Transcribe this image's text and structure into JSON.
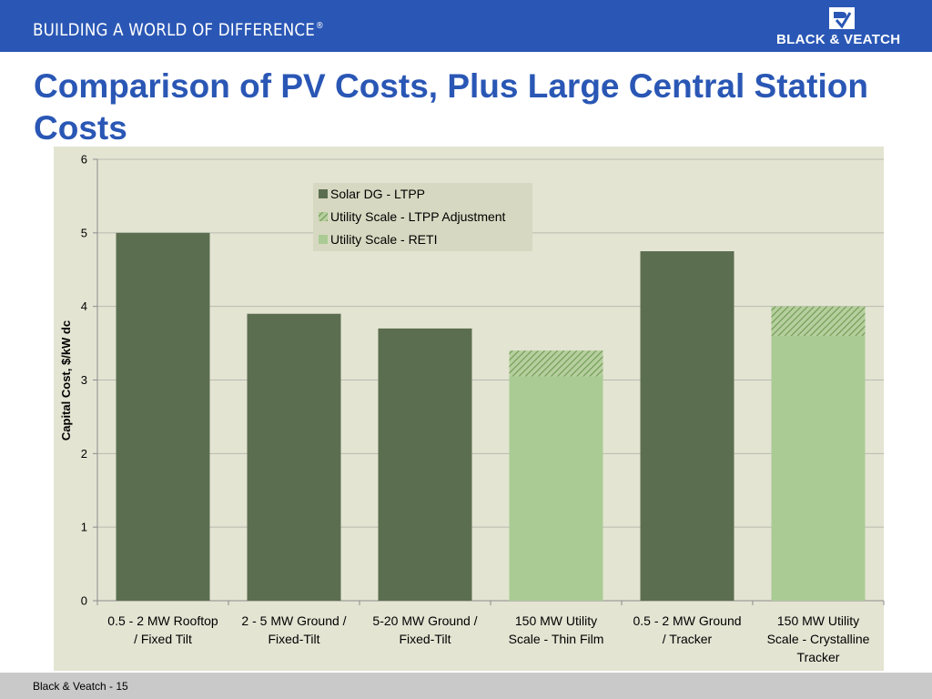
{
  "header": {
    "tagline": "BUILDING A WORLD OF DIFFERENCE",
    "tagline_mark": "®",
    "logo_text": "BLACK & VEATCH"
  },
  "slide": {
    "title": "Comparison of PV Costs, Plus Large Central Station Costs"
  },
  "footer": {
    "text": "Black & Veatch - 15"
  },
  "colors": {
    "brand_blue": "#2a57b5",
    "plot_background": "#e3e4d2",
    "solar_dg": "#5c6e50",
    "utility_adjustment": "#8faf6e",
    "utility_reti": "#aacc94"
  },
  "chart_data": {
    "type": "bar",
    "stacked": true,
    "title": "",
    "xlabel": "",
    "ylabel": "Capital Cost, $/kW dc",
    "ylim": [
      0,
      6
    ],
    "yticks": [
      "0",
      "1",
      "2",
      "3",
      "4",
      "5",
      "6"
    ],
    "grid": true,
    "legend_position": "top-center",
    "categories": [
      [
        "0.5 - 2 MW Rooftop",
        "/ Fixed Tilt"
      ],
      [
        "2 - 5 MW Ground /",
        "Fixed-Tilt"
      ],
      [
        "5-20 MW Ground /",
        "Fixed-Tilt"
      ],
      [
        "150 MW Utility",
        "Scale - Thin Film"
      ],
      [
        "0.5 - 2 MW Ground",
        "/ Tracker"
      ],
      [
        "150 MW Utility",
        "Scale - Crystalline",
        "Tracker"
      ]
    ],
    "series": [
      {
        "name": "Solar DG - LTPP",
        "values": [
          5.0,
          3.9,
          3.7,
          0,
          4.75,
          0
        ],
        "color": "#5c6e50",
        "pattern": "solid"
      },
      {
        "name": "Utility Scale - RETI",
        "values": [
          0,
          0,
          0,
          3.05,
          0,
          3.6
        ],
        "color": "#aacc94",
        "pattern": "solid"
      },
      {
        "name": "Utility Scale - LTPP Adjustment",
        "values": [
          0,
          0,
          0,
          0.35,
          0,
          0.4
        ],
        "color": "#8faf6e",
        "pattern": "hatched"
      }
    ],
    "legend_order": [
      "Solar DG - LTPP",
      "Utility Scale - LTPP Adjustment",
      "Utility Scale - RETI"
    ]
  }
}
